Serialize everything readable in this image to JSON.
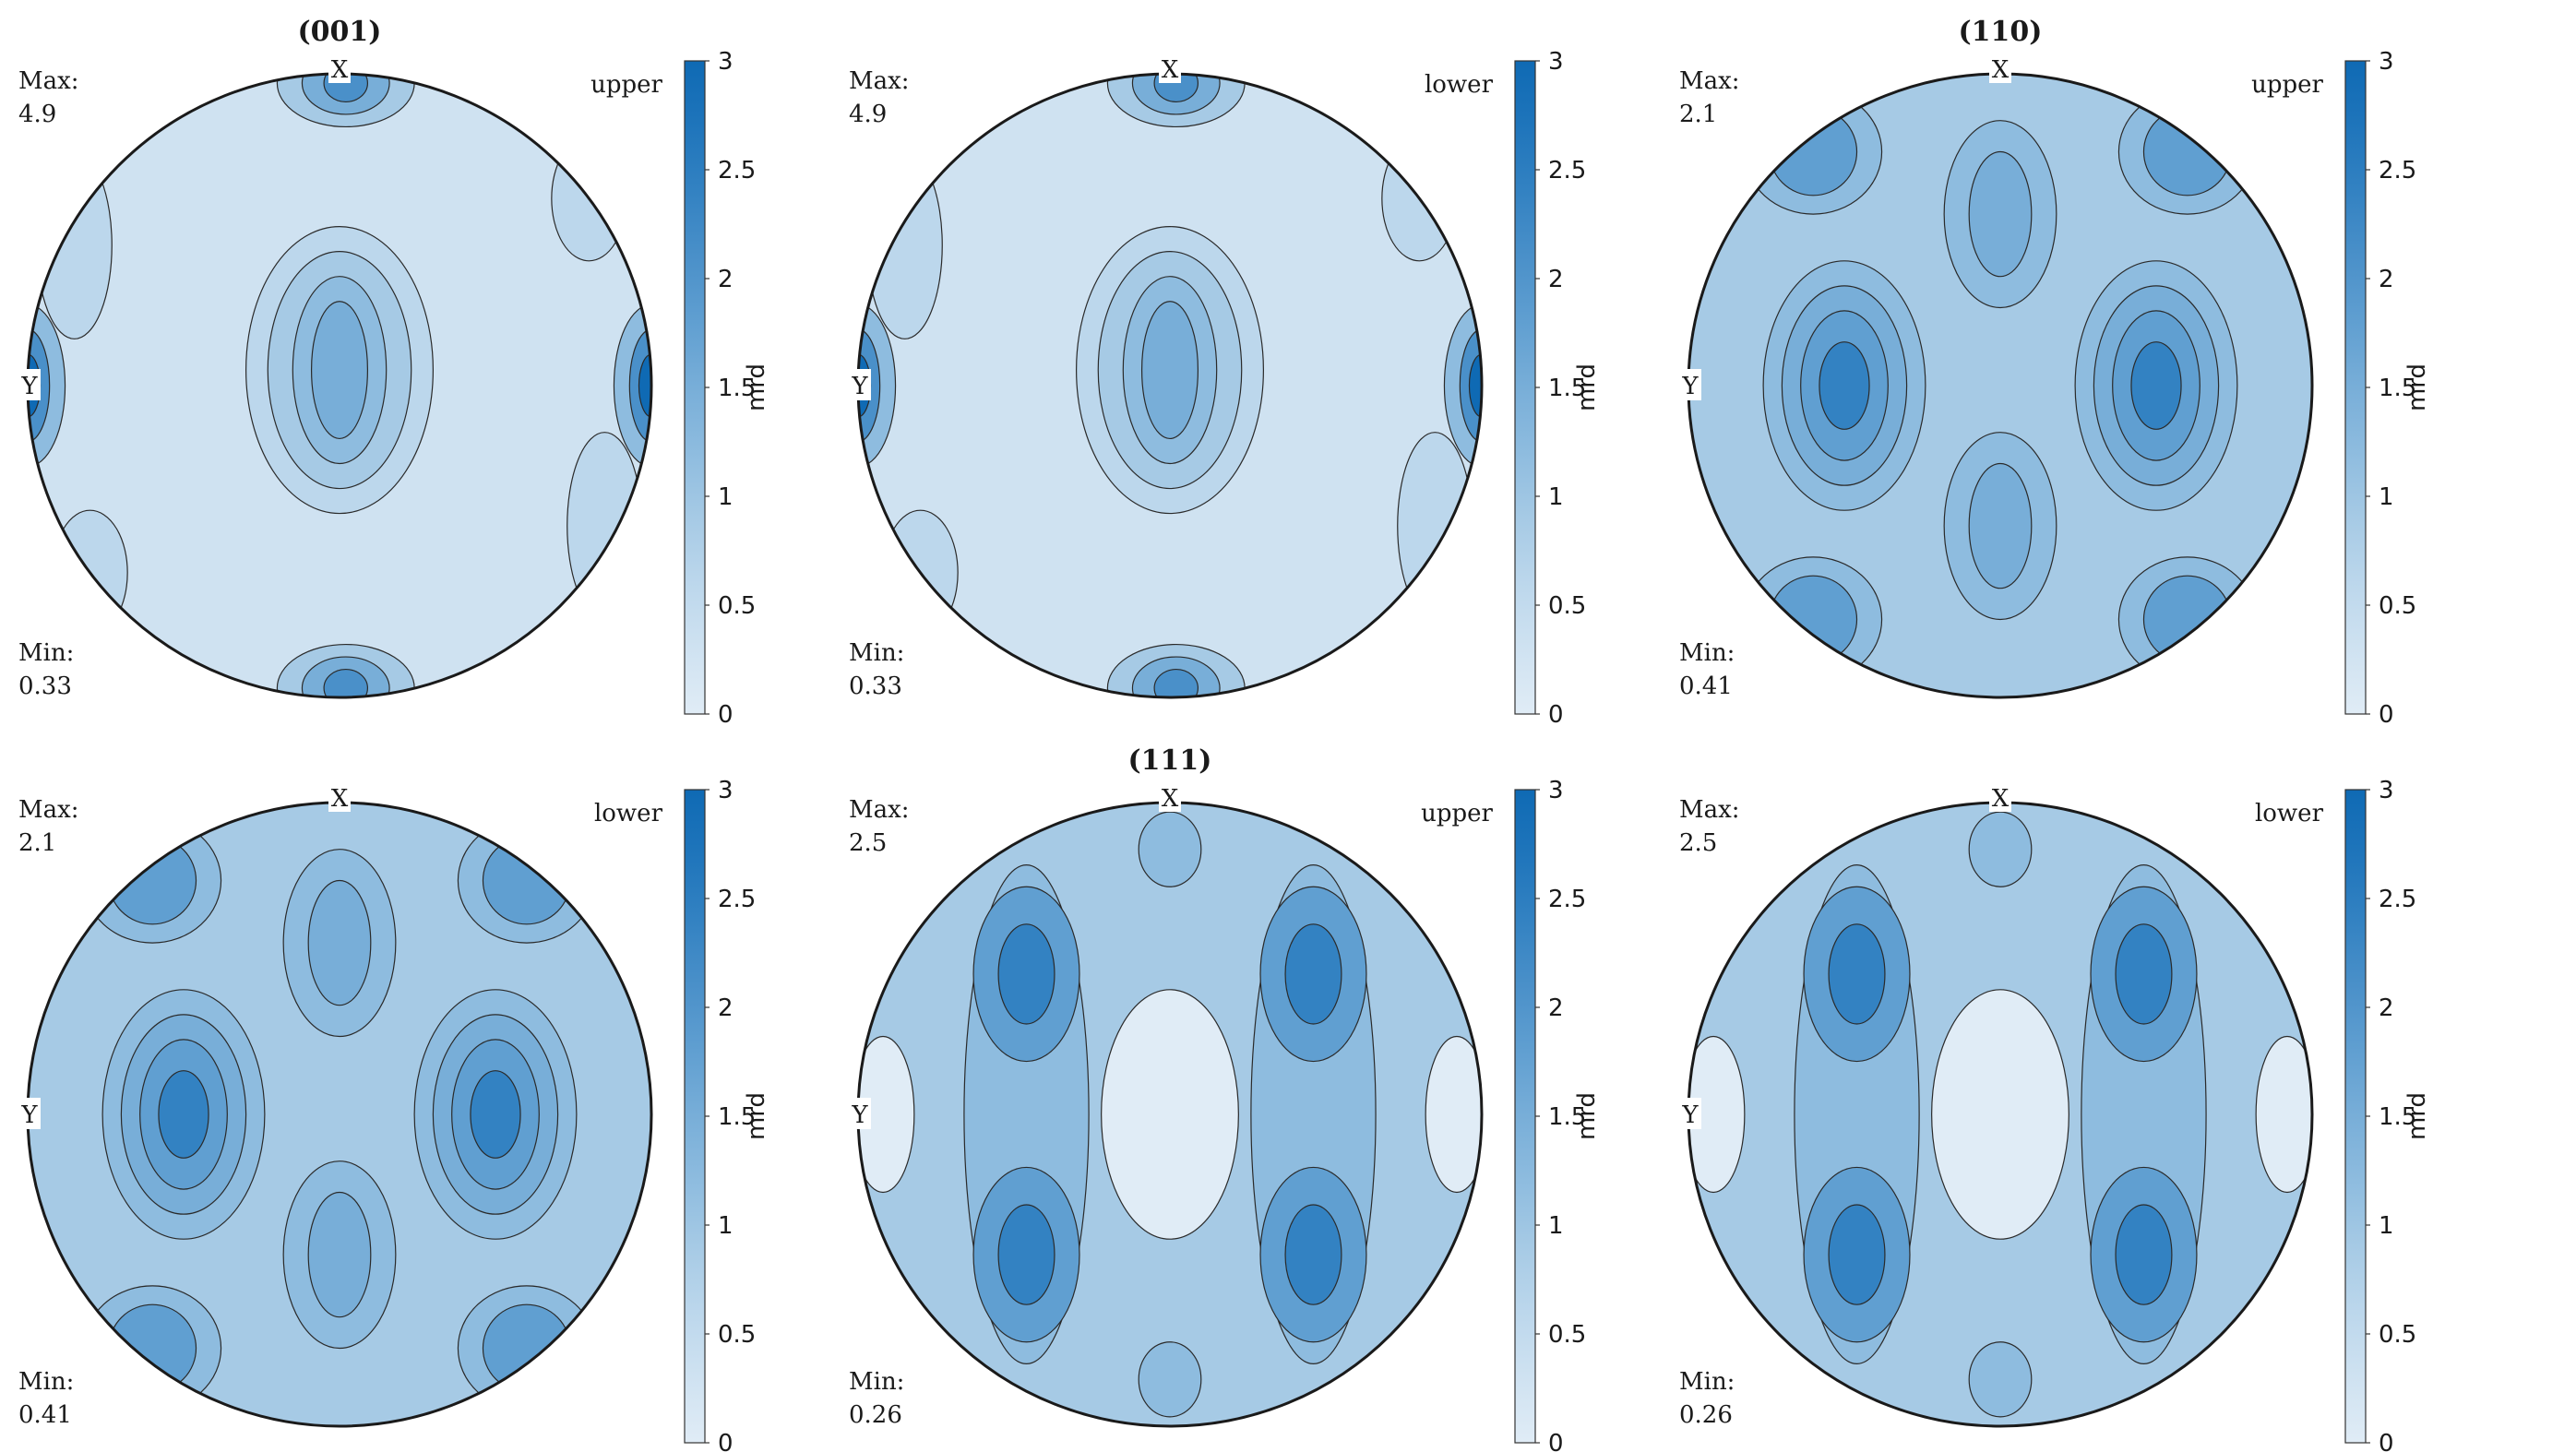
{
  "chart_data": [
    {
      "type": "heatmap",
      "kind": "pole-figure",
      "title": "(001)",
      "hemisphere": "upper",
      "max_label": "Max:",
      "max_value": "4.9",
      "min_label": "Min:",
      "min_value": "0.33",
      "axis_x": "X",
      "axis_y": "Y",
      "colorbar": {
        "label": "mrd",
        "ticks": [
          "0",
          "0.5",
          "1",
          "1.5",
          "2",
          "2.5",
          "3"
        ],
        "range": [
          0,
          3
        ]
      },
      "pattern": "001"
    },
    {
      "type": "heatmap",
      "kind": "pole-figure",
      "title": "",
      "hemisphere": "lower",
      "max_label": "Max:",
      "max_value": "4.9",
      "min_label": "Min:",
      "min_value": "0.33",
      "axis_x": "X",
      "axis_y": "Y",
      "colorbar": {
        "label": "mrd",
        "ticks": [
          "0",
          "0.5",
          "1",
          "1.5",
          "2",
          "2.5",
          "3"
        ],
        "range": [
          0,
          3
        ]
      },
      "pattern": "001"
    },
    {
      "type": "heatmap",
      "kind": "pole-figure",
      "title": "(110)",
      "hemisphere": "upper",
      "max_label": "Max:",
      "max_value": "2.1",
      "min_label": "Min:",
      "min_value": "0.41",
      "axis_x": "X",
      "axis_y": "Y",
      "colorbar": {
        "label": "mrd",
        "ticks": [
          "0",
          "0.5",
          "1",
          "1.5",
          "2",
          "2.5",
          "3"
        ],
        "range": [
          0,
          3
        ]
      },
      "pattern": "110"
    },
    {
      "type": "heatmap",
      "kind": "pole-figure",
      "title": "",
      "hemisphere": "lower",
      "max_label": "Max:",
      "max_value": "2.1",
      "min_label": "Min:",
      "min_value": "0.41",
      "axis_x": "X",
      "axis_y": "Y",
      "colorbar": {
        "label": "mrd",
        "ticks": [
          "0",
          "0.5",
          "1",
          "1.5",
          "2",
          "2.5",
          "3"
        ],
        "range": [
          0,
          3
        ]
      },
      "pattern": "110"
    },
    {
      "type": "heatmap",
      "kind": "pole-figure",
      "title": "(111)",
      "hemisphere": "upper",
      "max_label": "Max:",
      "max_value": "2.5",
      "min_label": "Min:",
      "min_value": "0.26",
      "axis_x": "X",
      "axis_y": "Y",
      "colorbar": {
        "label": "mrd",
        "ticks": [
          "0",
          "0.5",
          "1",
          "1.5",
          "2",
          "2.5",
          "3"
        ],
        "range": [
          0,
          3
        ]
      },
      "pattern": "111"
    },
    {
      "type": "heatmap",
      "kind": "pole-figure",
      "title": "",
      "hemisphere": "lower",
      "max_label": "Max:",
      "max_value": "2.5",
      "min_label": "Min:",
      "min_value": "0.26",
      "axis_x": "X",
      "axis_y": "Y",
      "colorbar": {
        "label": "mrd",
        "ticks": [
          "0",
          "0.5",
          "1",
          "1.5",
          "2",
          "2.5",
          "3"
        ],
        "range": [
          0,
          3
        ]
      },
      "pattern": "111"
    }
  ],
  "colors": {
    "ramp": [
      "#e0ecf6",
      "#cfe2f1",
      "#bcd7ec",
      "#a6cae5",
      "#8ebcdf",
      "#78aed8",
      "#609fd1",
      "#4a90c9",
      "#3382c2",
      "#1f75bb",
      "#0f6ab4"
    ],
    "outline": "#1a1a1a",
    "contour": "#2a2a2a"
  }
}
